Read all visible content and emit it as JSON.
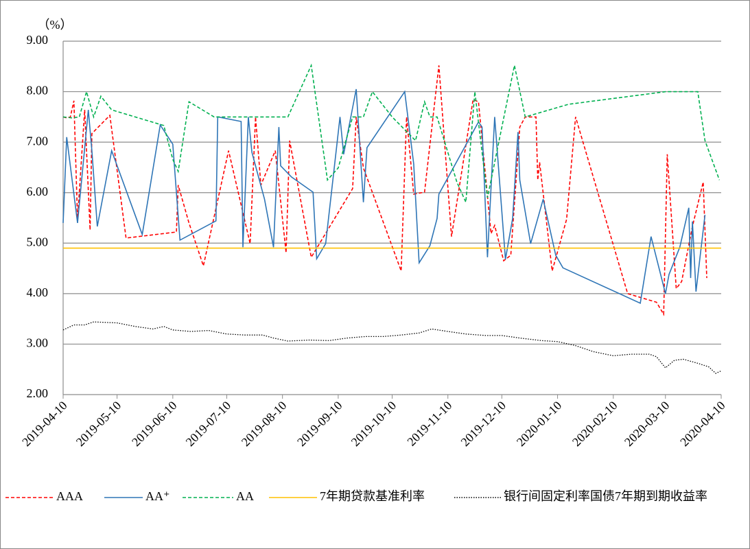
{
  "chart_data": {
    "type": "line",
    "y_label": "（%）",
    "xlim": [
      "2019-04-10",
      "2020-04-10"
    ],
    "xticks": [
      "2019-04-10",
      "2019-05-10",
      "2019-06-10",
      "2019-07-10",
      "2019-08-10",
      "2019-09-10",
      "2019-10-10",
      "2019-11-10",
      "2019-12-10",
      "2020-01-10",
      "2020-02-10",
      "2020-03-10",
      "2020-04-10"
    ],
    "ylim": [
      2,
      9
    ],
    "yticks": [
      {
        "value": 2,
        "label": "2.00"
      },
      {
        "value": 3,
        "label": "3.00"
      },
      {
        "value": 4,
        "label": "4.00"
      },
      {
        "value": 5,
        "label": "5.00"
      },
      {
        "value": 6,
        "label": "6.00"
      },
      {
        "value": 7,
        "label": "7.00"
      },
      {
        "value": 8,
        "label": "8.00"
      },
      {
        "value": 9,
        "label": "9.00"
      }
    ],
    "grid": true,
    "legend": "bottom",
    "series": [
      {
        "name": "AAA",
        "color": "#ff0000",
        "dash": "dashed",
        "x": [
          "2019-04-10",
          "2019-04-12",
          "2019-04-14",
          "2019-04-16",
          "2019-04-18",
          "2019-04-22",
          "2019-04-25",
          "2019-04-26",
          "2019-05-06",
          "2019-05-15",
          "2019-06-12",
          "2019-06-13",
          "2019-06-19",
          "2019-06-27",
          "2019-07-11",
          "2019-07-23",
          "2019-07-26",
          "2019-07-29",
          "2019-08-06",
          "2019-08-12",
          "2019-08-14",
          "2019-08-20",
          "2019-08-26",
          "2019-09-18",
          "2019-09-20",
          "2019-09-24",
          "2019-10-15",
          "2019-10-18",
          "2019-10-22",
          "2019-10-28",
          "2019-11-05",
          "2019-11-12",
          "2019-11-24",
          "2019-11-27",
          "2019-12-04",
          "2019-12-06",
          "2019-12-11",
          "2019-12-15",
          "2019-12-20",
          "2019-12-23",
          "2019-12-29",
          "2019-12-30",
          "2019-12-31",
          "2020-01-07",
          "2020-01-15",
          "2020-01-20",
          "2020-02-18",
          "2020-03-05",
          "2020-03-09",
          "2020-03-11",
          "2020-03-16",
          "2020-03-19",
          "2020-03-25",
          "2020-03-31",
          "2020-04-02"
        ],
        "values": [
          7.5,
          7.48,
          7.5,
          7.82,
          5.47,
          7.64,
          5.26,
          7.17,
          7.53,
          5.1,
          5.22,
          6.15,
          5.4,
          4.55,
          6.83,
          4.99,
          7.5,
          6.15,
          6.83,
          4.81,
          7.03,
          5.87,
          4.72,
          6.08,
          7.5,
          6.49,
          4.45,
          7.5,
          5.97,
          6.01,
          8.52,
          5.13,
          7.84,
          7.8,
          5.19,
          5.35,
          4.65,
          4.76,
          7.3,
          7.5,
          7.5,
          6.25,
          6.6,
          4.45,
          5.47,
          7.5,
          4.0,
          3.83,
          3.59,
          6.76,
          4.1,
          4.24,
          5.33,
          6.21,
          4.31
        ]
      },
      {
        "name": "AA⁺",
        "color": "#2e75b6",
        "dash": "solid",
        "x": [
          "2019-04-10",
          "2019-04-12",
          "2019-04-18",
          "2019-04-24",
          "2019-04-26",
          "2019-04-29",
          "2019-05-07",
          "2019-05-24",
          "2019-06-03",
          "2019-06-10",
          "2019-06-14",
          "2019-07-04",
          "2019-07-05",
          "2019-07-18",
          "2019-07-19",
          "2019-07-22",
          "2019-07-24",
          "2019-07-31",
          "2019-08-05",
          "2019-08-08",
          "2019-08-09",
          "2019-08-15",
          "2019-08-27",
          "2019-08-29",
          "2019-09-03",
          "2019-09-11",
          "2019-09-13",
          "2019-09-20",
          "2019-09-24",
          "2019-09-26",
          "2019-10-17",
          "2019-10-22",
          "2019-10-25",
          "2019-10-31",
          "2019-11-04",
          "2019-11-05",
          "2019-11-27",
          "2019-11-29",
          "2019-12-02",
          "2019-12-06",
          "2019-12-12",
          "2019-12-16",
          "2019-12-19",
          "2019-12-20",
          "2019-12-26",
          "2020-01-02",
          "2020-01-09",
          "2020-01-13",
          "2020-02-25",
          "2020-03-02",
          "2020-03-10",
          "2020-03-12",
          "2020-03-18",
          "2020-03-23",
          "2020-03-24",
          "2020-03-25",
          "2020-03-27",
          "2020-04-01"
        ],
        "values": [
          5.4,
          7.1,
          5.4,
          7.64,
          6.83,
          5.33,
          6.83,
          5.17,
          7.34,
          6.96,
          5.06,
          5.44,
          7.5,
          7.41,
          4.92,
          7.5,
          6.8,
          5.87,
          4.92,
          7.3,
          6.53,
          6.31,
          6.01,
          4.69,
          4.99,
          7.5,
          6.76,
          8.05,
          5.81,
          6.89,
          8.0,
          6.57,
          4.61,
          4.95,
          5.49,
          5.97,
          7.4,
          7.3,
          4.72,
          7.5,
          4.68,
          5.49,
          7.2,
          6.25,
          4.99,
          5.87,
          4.76,
          4.51,
          3.81,
          5.13,
          4.0,
          4.38,
          4.92,
          5.7,
          4.31,
          5.43,
          4.04,
          5.56
        ]
      },
      {
        "name": "AA",
        "color": "#00b050",
        "dash": "dashed",
        "x": [
          "2019-04-10",
          "2019-04-15",
          "2019-04-19",
          "2019-04-23",
          "2019-04-27",
          "2019-05-01",
          "2019-05-07",
          "2019-06-05",
          "2019-06-10",
          "2019-06-13",
          "2019-06-19",
          "2019-07-03",
          "2019-08-05",
          "2019-08-13",
          "2019-08-26",
          "2019-09-04",
          "2019-09-10",
          "2019-09-18",
          "2019-09-24",
          "2019-09-29",
          "2019-10-10",
          "2019-10-23",
          "2019-10-28",
          "2019-10-31",
          "2019-11-04",
          "2019-11-15",
          "2019-11-20",
          "2019-11-25",
          "2019-12-02",
          "2019-12-17",
          "2019-12-23",
          "2020-01-16",
          "2020-03-10",
          "2020-03-28",
          "2020-04-01",
          "2020-04-09"
        ],
        "values": [
          7.5,
          7.48,
          7.5,
          8.0,
          7.5,
          7.91,
          7.64,
          7.33,
          6.66,
          6.42,
          7.8,
          7.5,
          7.5,
          7.5,
          8.52,
          6.25,
          6.49,
          7.5,
          7.5,
          8.0,
          7.5,
          7.03,
          7.8,
          7.5,
          7.5,
          6.21,
          5.81,
          8.0,
          5.9,
          8.52,
          7.5,
          7.75,
          8.0,
          8.0,
          7.03,
          6.25
        ]
      },
      {
        "name": "7年期贷款基准利率",
        "color": "#ffc000",
        "dash": "solid",
        "x": [
          "2019-04-10",
          "2020-04-10"
        ],
        "values": [
          4.9,
          4.9
        ]
      },
      {
        "name": "银行间固定利率国债7年期到期收益率",
        "color": "#000000",
        "dash": "dotted",
        "x": [
          "2019-04-10",
          "2019-04-16",
          "2019-04-22",
          "2019-04-27",
          "2019-05-10",
          "2019-05-20",
          "2019-05-30",
          "2019-06-05",
          "2019-06-10",
          "2019-06-20",
          "2019-06-30",
          "2019-07-10",
          "2019-07-20",
          "2019-07-30",
          "2019-08-05",
          "2019-08-13",
          "2019-08-25",
          "2019-09-05",
          "2019-09-15",
          "2019-09-25",
          "2019-10-05",
          "2019-10-15",
          "2019-10-25",
          "2019-11-01",
          "2019-11-10",
          "2019-11-20",
          "2019-12-01",
          "2019-12-10",
          "2019-12-20",
          "2020-01-01",
          "2020-01-10",
          "2020-01-20",
          "2020-01-30",
          "2020-02-10",
          "2020-02-20",
          "2020-03-01",
          "2020-03-05",
          "2020-03-10",
          "2020-03-15",
          "2020-03-20",
          "2020-03-28",
          "2020-04-03",
          "2020-04-07",
          "2020-04-10"
        ],
        "values": [
          3.28,
          3.38,
          3.38,
          3.44,
          3.42,
          3.35,
          3.3,
          3.35,
          3.28,
          3.25,
          3.27,
          3.2,
          3.18,
          3.18,
          3.12,
          3.06,
          3.08,
          3.07,
          3.12,
          3.15,
          3.15,
          3.18,
          3.22,
          3.3,
          3.25,
          3.2,
          3.17,
          3.17,
          3.12,
          3.07,
          3.05,
          2.97,
          2.85,
          2.77,
          2.8,
          2.8,
          2.75,
          2.53,
          2.68,
          2.7,
          2.62,
          2.55,
          2.42,
          2.47
        ]
      }
    ]
  }
}
